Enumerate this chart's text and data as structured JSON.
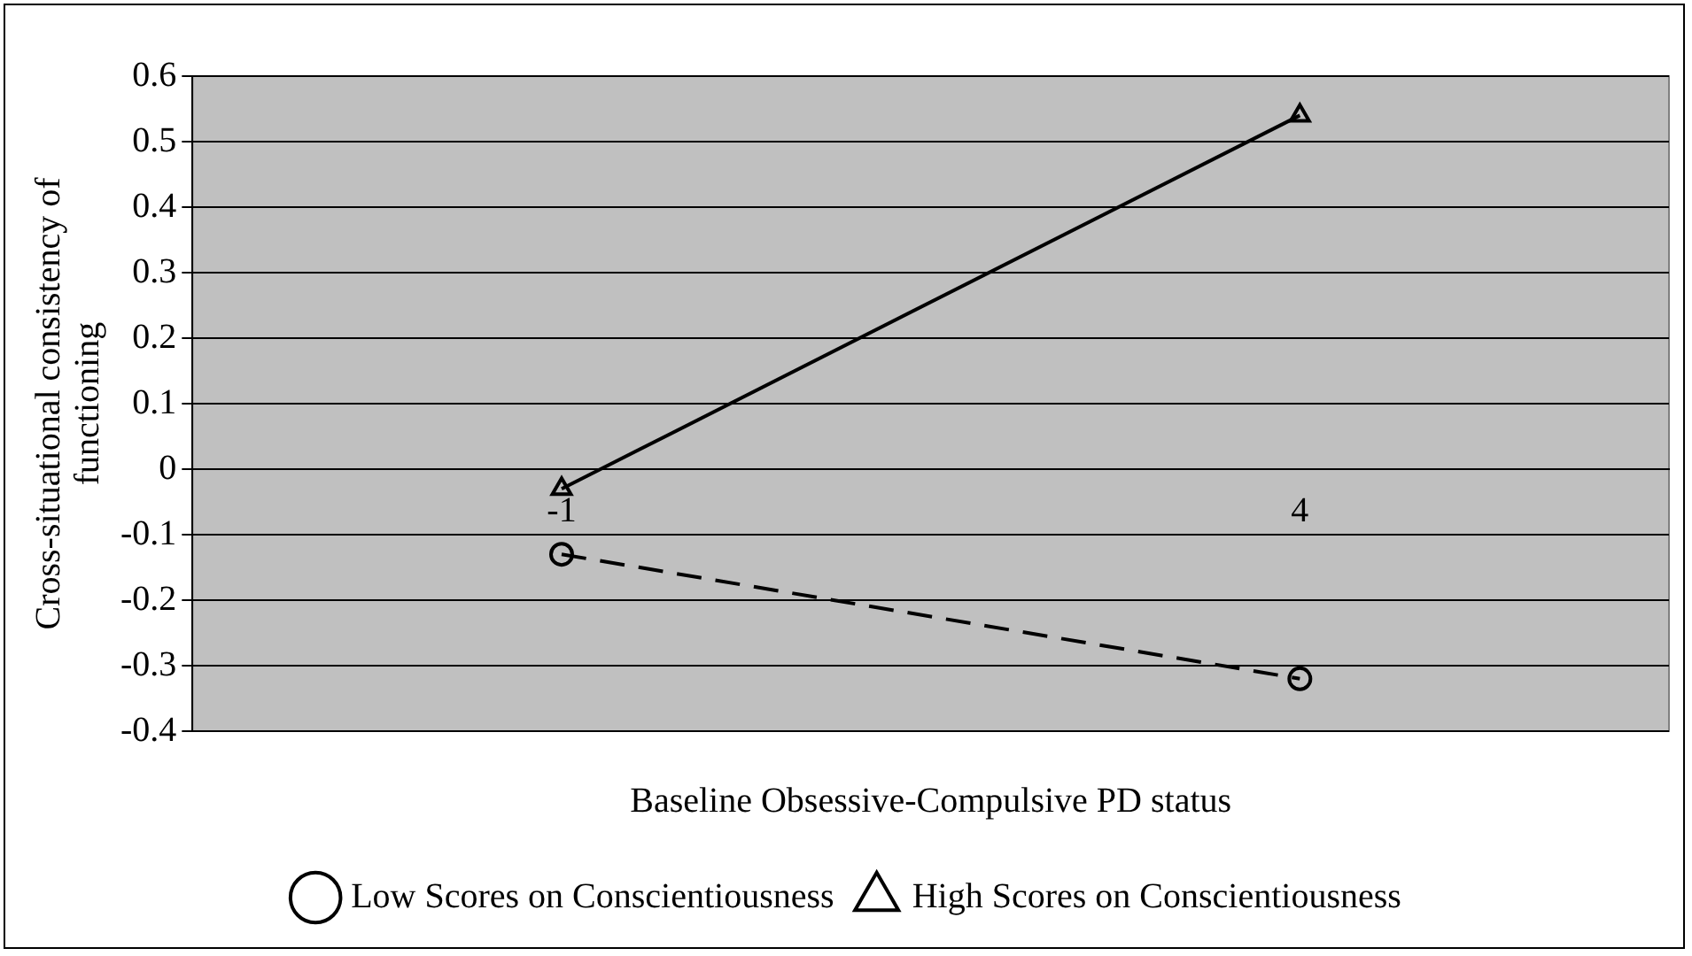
{
  "chart_data": {
    "type": "line",
    "xlabel": "Baseline Obsessive-Compulsive PD status",
    "ylabel": "Cross-situational consistency of functioning",
    "categories": [
      "-1",
      "4"
    ],
    "series": [
      {
        "name": "Low Scores on Conscientiousness",
        "color": "#000000",
        "values": [
          -0.13,
          -0.32
        ],
        "marker": "circle",
        "line_style": "dashed"
      },
      {
        "name": "High Scores on Conscientiousness",
        "color": "#000000",
        "values": [
          -0.03,
          0.54
        ],
        "marker": "triangle",
        "line_style": "solid"
      }
    ],
    "ylim": [
      -0.4,
      0.6
    ],
    "yticks": [
      -0.4,
      -0.3,
      -0.2,
      -0.1,
      0,
      0.1,
      0.2,
      0.3,
      0.4,
      0.5,
      0.6
    ],
    "grid": "y",
    "legend": "bottom"
  }
}
